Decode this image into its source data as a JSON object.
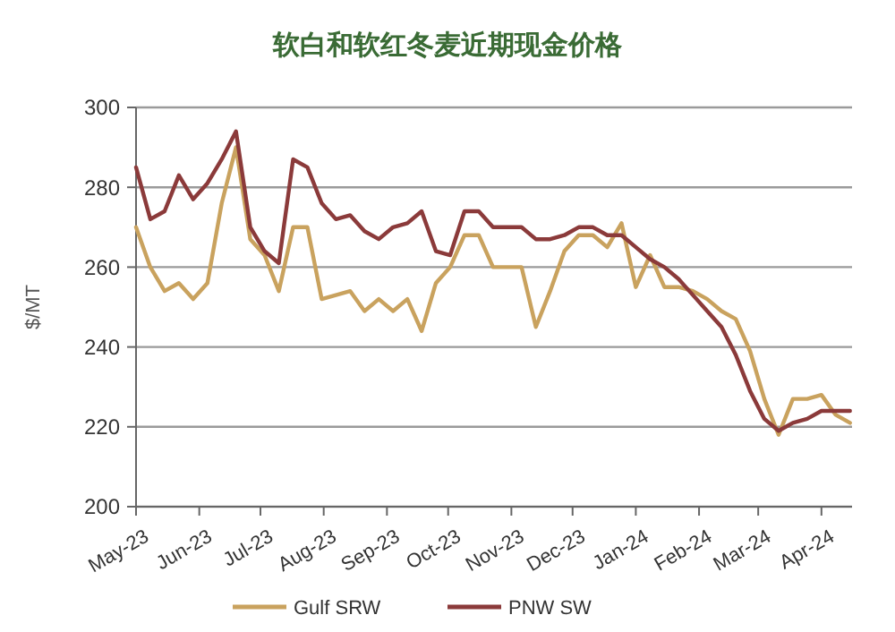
{
  "chart_data": {
    "type": "line",
    "title": "软白和软红冬麦近期现金价格",
    "ylabel": "$/MT",
    "x": [
      "2023-05-01",
      "2023-05-08",
      "2023-05-15",
      "2023-05-22",
      "2023-05-29",
      "2023-06-05",
      "2023-06-12",
      "2023-06-19",
      "2023-06-26",
      "2023-07-03",
      "2023-07-10",
      "2023-07-17",
      "2023-07-24",
      "2023-07-31",
      "2023-08-07",
      "2023-08-14",
      "2023-08-21",
      "2023-08-28",
      "2023-09-04",
      "2023-09-11",
      "2023-09-18",
      "2023-09-25",
      "2023-10-02",
      "2023-10-09",
      "2023-10-16",
      "2023-10-23",
      "2023-10-30",
      "2023-11-06",
      "2023-11-13",
      "2023-11-20",
      "2023-11-27",
      "2023-12-04",
      "2023-12-11",
      "2023-12-18",
      "2023-12-25",
      "2024-01-01",
      "2024-01-08",
      "2024-01-15",
      "2024-01-22",
      "2024-01-29",
      "2024-02-05",
      "2024-02-12",
      "2024-02-19",
      "2024-02-26",
      "2024-03-04",
      "2024-03-11",
      "2024-03-18",
      "2024-03-25",
      "2024-04-01",
      "2024-04-08",
      "2024-04-15"
    ],
    "series": [
      {
        "name": "Gulf SRW",
        "color": "#c9a25e",
        "values": [
          270,
          260,
          254,
          256,
          252,
          256,
          276,
          290,
          267,
          263,
          254,
          270,
          270,
          252,
          253,
          254,
          249,
          252,
          249,
          252,
          244,
          256,
          260,
          268,
          268,
          260,
          260,
          260,
          245,
          254,
          264,
          268,
          268,
          265,
          271,
          255,
          263,
          255,
          255,
          254,
          252,
          249,
          247,
          239,
          227,
          218,
          227,
          227,
          228,
          223,
          221
        ]
      },
      {
        "name": "PNW SW",
        "color": "#8b3a3a",
        "values": [
          285,
          272,
          274,
          283,
          277,
          281,
          287,
          294,
          270,
          264,
          261,
          287,
          285,
          276,
          272,
          273,
          269,
          267,
          270,
          271,
          274,
          264,
          263,
          274,
          274,
          270,
          270,
          270,
          267,
          267,
          268,
          270,
          270,
          268,
          268,
          265,
          262,
          260,
          257,
          253,
          249,
          245,
          238,
          229,
          222,
          219,
          221,
          222,
          224,
          224,
          224
        ]
      }
    ],
    "xlim": [
      "2023-05-01",
      "2024-04-16"
    ],
    "xticks": [
      {
        "value": "2023-05-01",
        "label": "May-23"
      },
      {
        "value": "2023-06-01",
        "label": "Jun-23"
      },
      {
        "value": "2023-07-01",
        "label": "Jul-23"
      },
      {
        "value": "2023-08-01",
        "label": "Aug-23"
      },
      {
        "value": "2023-09-01",
        "label": "Sep-23"
      },
      {
        "value": "2023-10-01",
        "label": "Oct-23"
      },
      {
        "value": "2023-11-01",
        "label": "Nov-23"
      },
      {
        "value": "2023-12-01",
        "label": "Dec-23"
      },
      {
        "value": "2024-01-01",
        "label": "Jan-24"
      },
      {
        "value": "2024-02-01",
        "label": "Feb-24"
      },
      {
        "value": "2024-03-01",
        "label": "Mar-24"
      },
      {
        "value": "2024-04-01",
        "label": "Apr-24"
      }
    ],
    "ylim": [
      200,
      300
    ],
    "yticks": [
      200,
      220,
      240,
      260,
      280,
      300
    ],
    "grid": "y",
    "legend": "bottom",
    "marker": "none",
    "line_style": "solid"
  }
}
